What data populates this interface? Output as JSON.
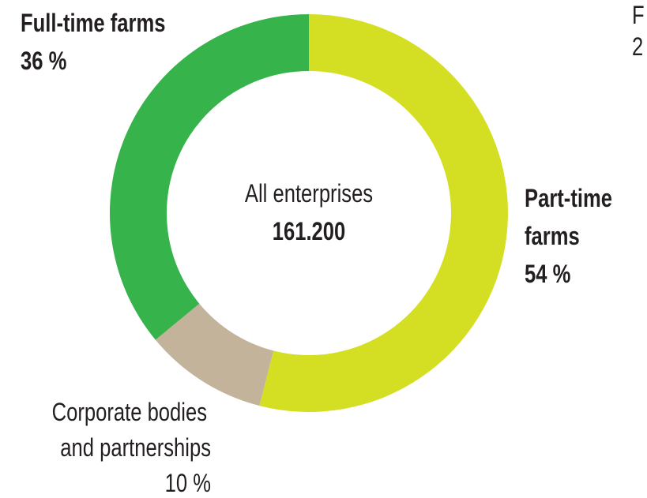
{
  "chart_data": {
    "type": "pie",
    "variant": "donut",
    "center_label": "All enterprises",
    "center_value": "161.200",
    "slices": [
      {
        "name": "Part-time farms",
        "label_line1": "Part-time",
        "label_line2": "farms",
        "value_label": "54 %",
        "value": 54,
        "color": "#d4df24"
      },
      {
        "name": "Corporate bodies and partnerships",
        "label_line1": "Corporate bodies",
        "label_line2": "and partnerships",
        "value_label": "10 %",
        "value": 10,
        "color": "#c2b39a"
      },
      {
        "name": "Full-time farms",
        "label_line1": "Full-time farms",
        "value_label": "36 %",
        "value": 36,
        "color": "#36b34a"
      }
    ],
    "cut_off_label": {
      "line1": "F",
      "line2": "2"
    }
  }
}
